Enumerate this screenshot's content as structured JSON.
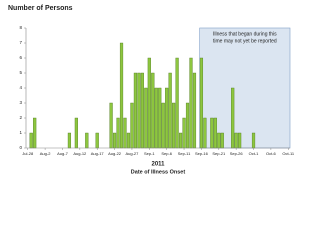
{
  "chart_data": {
    "type": "bar",
    "title": "Number of Persons",
    "xlabel_year": "2011",
    "xlabel": "Date of Illness Onset",
    "categories": [
      "Jul-28",
      null,
      null,
      null,
      null,
      "Aug-2",
      null,
      null,
      null,
      null,
      "Aug-7",
      null,
      null,
      null,
      null,
      "Aug-12",
      null,
      null,
      null,
      null,
      "Aug-17",
      null,
      null,
      null,
      null,
      "Aug-22",
      null,
      null,
      null,
      null,
      "Aug-27",
      null,
      null,
      null,
      null,
      "Sep-1",
      null,
      null,
      null,
      null,
      "Sep-6",
      null,
      null,
      null,
      null,
      "Sep-11",
      null,
      null,
      null,
      null,
      "Sep-16",
      null,
      null,
      null,
      null,
      "Sep-21",
      null,
      null,
      null,
      null,
      "Sep-26",
      null,
      null,
      null,
      null,
      "Oct-1",
      null,
      null,
      null,
      null,
      "Oct-6",
      null,
      null,
      null,
      null,
      "Oct-11"
    ],
    "values": [
      0,
      1,
      2,
      0,
      0,
      0,
      0,
      0,
      0,
      0,
      0,
      0,
      1,
      0,
      2,
      0,
      0,
      1,
      0,
      0,
      1,
      0,
      0,
      0,
      3,
      1,
      2,
      7,
      2,
      1,
      3,
      5,
      5,
      5,
      4,
      6,
      5,
      4,
      4,
      3,
      4,
      5,
      3,
      6,
      1,
      2,
      3,
      6,
      5,
      0,
      6,
      2,
      0,
      2,
      2,
      1,
      1,
      0,
      0,
      4,
      1,
      1,
      0,
      0,
      0,
      1,
      0,
      0,
      0,
      0,
      0,
      0,
      0,
      0,
      0,
      0
    ],
    "color": "#8dc63f",
    "ylim": [
      0,
      8
    ],
    "yticks": [
      0,
      1,
      2,
      3,
      4,
      5,
      6,
      7,
      8
    ],
    "annotation": {
      "from": "Sep-16",
      "lines": [
        "Illness that began during this",
        "time may not yet be reported"
      ]
    }
  }
}
